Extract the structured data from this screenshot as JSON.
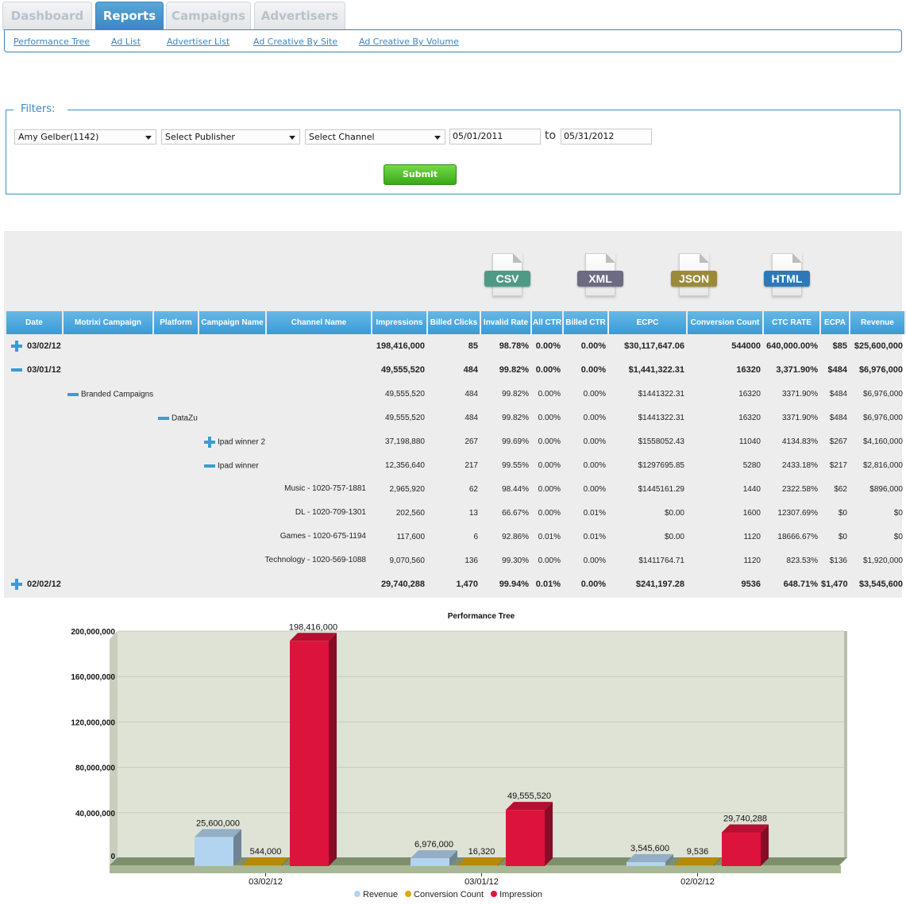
{
  "tabs": [
    {
      "label": "Dashboard",
      "active": false
    },
    {
      "label": "Reports",
      "active": true
    },
    {
      "label": "Campaigns",
      "active": false
    },
    {
      "label": "Advertisers",
      "active": false
    }
  ],
  "subnav": [
    "Performance Tree",
    "Ad List",
    "Advertiser List",
    "Ad Creative By Site",
    "Ad Creative By Volume"
  ],
  "filters": {
    "legend": "Filters:",
    "advertiser": "Amy Gelber(1142)",
    "publisher": "Select Publisher",
    "channel": "Select Channel",
    "date_from": "05/01/2011",
    "to_label": "to",
    "date_to": "05/31/2012",
    "submit": "Submit"
  },
  "exports": [
    {
      "label": "CSV",
      "color": "#4f9a86"
    },
    {
      "label": "XML",
      "color": "#6b6b82"
    },
    {
      "label": "JSON",
      "color": "#9a8a3a"
    },
    {
      "label": "HTML",
      "color": "#2f78b8"
    }
  ],
  "table": {
    "columns": [
      "Date",
      "Motrixi Campaign",
      "Platform",
      "Campaign Name",
      "Channel Name",
      "Impressions",
      "Billed Clicks",
      "Invalid Rate",
      "All CTR",
      "Billed CTR",
      "ECPC",
      "Conversion Count",
      "CTC RATE",
      "ECPA",
      "Revenue"
    ],
    "rows": [
      {
        "level": 0,
        "toggle": "plus",
        "label": "03/02/12",
        "values": [
          "198,416,000",
          "85",
          "98.78%",
          "0.00%",
          "0.00%",
          "$30,117,647.06",
          "544000",
          "640,000.00%",
          "$85",
          "$25,600,000"
        ]
      },
      {
        "level": 0,
        "toggle": "minus",
        "label": "03/01/12",
        "values": [
          "49,555,520",
          "484",
          "99.82%",
          "0.00%",
          "0.00%",
          "$1,441,322.31",
          "16320",
          "3,371.90%",
          "$484",
          "$6,976,000"
        ]
      },
      {
        "level": 1,
        "toggle": "minus",
        "label": "Branded Campaigns",
        "values": [
          "49,555,520",
          "484",
          "99.82%",
          "0.00%",
          "0.00%",
          "$1441322.31",
          "16320",
          "3371.90%",
          "$484",
          "$6,976,000"
        ]
      },
      {
        "level": 2,
        "toggle": "minus",
        "label": "DataZu",
        "values": [
          "49,555,520",
          "484",
          "99.82%",
          "0.00%",
          "0.00%",
          "$1441322.31",
          "16320",
          "3371.90%",
          "$484",
          "$6,976,000"
        ]
      },
      {
        "level": 3,
        "toggle": "plus",
        "label": "Ipad winner 2",
        "values": [
          "37,198,880",
          "267",
          "99.69%",
          "0.00%",
          "0.00%",
          "$1558052.43",
          "11040",
          "4134.83%",
          "$267",
          "$4,160,000"
        ]
      },
      {
        "level": 3,
        "toggle": "minus",
        "label": "Ipad winner",
        "values": [
          "12,356,640",
          "217",
          "99.55%",
          "0.00%",
          "0.00%",
          "$1297695.85",
          "5280",
          "2433.18%",
          "$217",
          "$2,816,000"
        ]
      },
      {
        "level": 4,
        "toggle": "",
        "label": "Music - 1020-757-1881",
        "values": [
          "2,965,920",
          "62",
          "98.44%",
          "0.00%",
          "0.00%",
          "$1445161.29",
          "1440",
          "2322.58%",
          "$62",
          "$896,000"
        ]
      },
      {
        "level": 4,
        "toggle": "",
        "label": "DL - 1020-709-1301",
        "values": [
          "202,560",
          "13",
          "66.67%",
          "0.00%",
          "0.01%",
          "$0.00",
          "1600",
          "12307.69%",
          "$0",
          "$0"
        ]
      },
      {
        "level": 4,
        "toggle": "",
        "label": "Games - 1020-675-1194",
        "values": [
          "117,600",
          "6",
          "92.86%",
          "0.01%",
          "0.01%",
          "$0.00",
          "1120",
          "18666.67%",
          "$0",
          "$0"
        ]
      },
      {
        "level": 4,
        "toggle": "",
        "label": "Technology - 1020-569-1088",
        "values": [
          "9,070,560",
          "136",
          "99.30%",
          "0.00%",
          "0.00%",
          "$1411764.71",
          "1120",
          "823.53%",
          "$136",
          "$1,920,000"
        ]
      },
      {
        "level": 0,
        "toggle": "plus",
        "label": "02/02/12",
        "values": [
          "29,740,288",
          "1,470",
          "99.94%",
          "0.01%",
          "0.00%",
          "$241,197.28",
          "9536",
          "648.71%",
          "$1,470",
          "$3,545,600"
        ]
      }
    ]
  },
  "chart_data": {
    "type": "bar",
    "title": "Performance Tree",
    "categories": [
      "03/02/12",
      "03/01/12",
      "02/02/12"
    ],
    "series": [
      {
        "name": "Revenue",
        "values": [
          25600000,
          6976000,
          3545600
        ],
        "labels": [
          "25,600,000",
          "6,976,000",
          "3,545,600"
        ],
        "color": "#b3d4f0"
      },
      {
        "name": "Conversion Count",
        "values": [
          544000,
          16320,
          9536
        ],
        "labels": [
          "544,000",
          "16,320",
          "9,536"
        ],
        "color": "#e0a800"
      },
      {
        "name": "Impression",
        "values": [
          198416000,
          49555520,
          29740288
        ],
        "labels": [
          "198,416,000",
          "49,555,520",
          "29,740,288"
        ],
        "color": "#dc143c"
      }
    ],
    "ylim": [
      0,
      200000000
    ],
    "yticks": [
      "0",
      "40,000,000",
      "80,000,000",
      "120,000,000",
      "160,000,000",
      "200,000,000"
    ],
    "grid": true,
    "legend": "bottom-center"
  }
}
